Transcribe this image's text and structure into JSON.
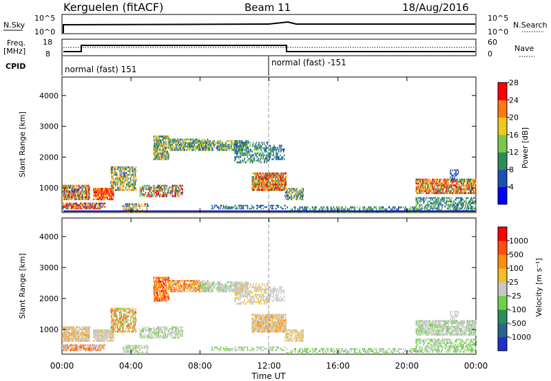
{
  "header": {
    "station": "Kerguelen (fitACF)",
    "beam": "Beam 11",
    "date": "18/Aug/2016"
  },
  "status_panels": {
    "nsky_label": "N.Sky",
    "nsearch_label": "N.Search",
    "n_left_ticks": [
      "10^5",
      "10^0"
    ],
    "n_right_ticks": [
      "10^5",
      "10^0"
    ],
    "freq_label": "Freq.",
    "freq_unit": "[MHz]",
    "freq_ticks": [
      "18",
      "8"
    ],
    "nave_label": "Nave",
    "nave_ticks": [
      "60",
      "0"
    ],
    "cpid_label": "CPID",
    "cpid_segments": [
      "normal (fast) 151",
      "normal (fast) -151"
    ]
  },
  "chart_data": [
    {
      "type": "heatmap",
      "name": "power",
      "ylabel": "Slant Range [km]",
      "yticks": [
        "1000",
        "2000",
        "3000",
        "4000"
      ],
      "ylim": [
        200,
        4600
      ],
      "colorbar_label": "Power [dB]",
      "colorbar_ticks": [
        "4",
        "8",
        "12",
        "16",
        "20",
        "24",
        "28"
      ],
      "colors": [
        "#0000ff",
        "#1c50b4",
        "#2e8c5a",
        "#7ac84a",
        "#f0c81e",
        "#ff7814",
        "#ff0000"
      ]
    },
    {
      "type": "heatmap",
      "name": "velocity",
      "ylabel": "Slant Range [km]",
      "yticks": [
        "1000",
        "2000",
        "3000",
        "4000"
      ],
      "ylim": [
        200,
        4600
      ],
      "colorbar_label": "Velocity [m s⁻¹]",
      "colorbar_ticks": [
        "1000",
        "500",
        "100",
        "25",
        "-25",
        "-100",
        "-500",
        "-1000"
      ],
      "colors": [
        "#1c32c8",
        "#28648c",
        "#2a8c5a",
        "#6ed246",
        "#c8c8c8",
        "#f5be28",
        "#ff8c14",
        "#ff5014",
        "#ff0000"
      ]
    }
  ],
  "time_axis": {
    "xlabel": "Time UT",
    "ticks": [
      "00:00",
      "04:00",
      "08:00",
      "12:00",
      "16:00",
      "20:00",
      "00:00"
    ]
  }
}
